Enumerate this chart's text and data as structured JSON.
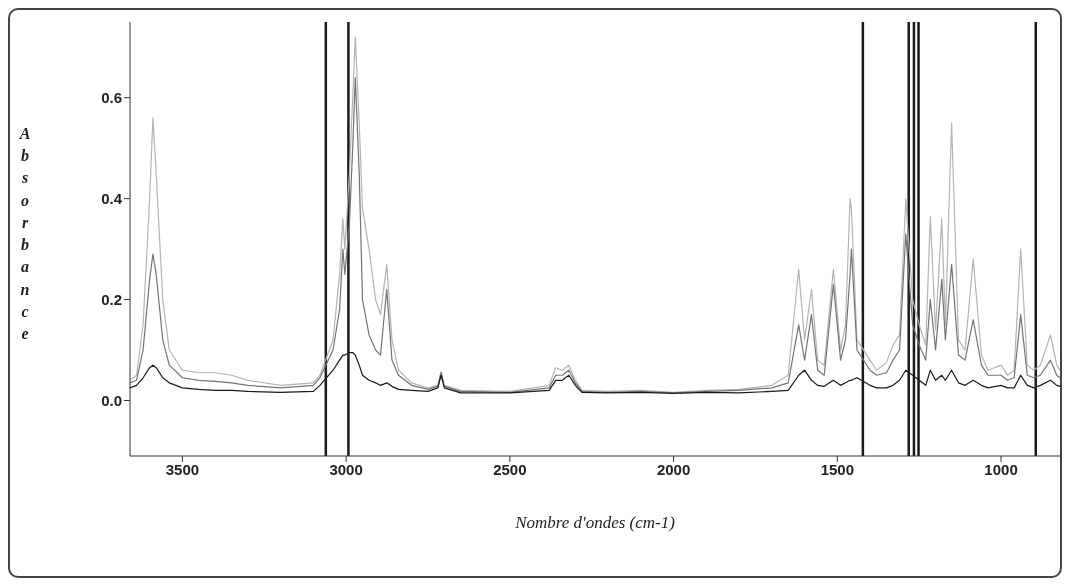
{
  "chart_data": {
    "type": "line",
    "xlabel": "Nombre d'ondes (cm-1)",
    "ylabel": "Absorbance",
    "x": [
      3660,
      3640,
      3620,
      3600,
      3590,
      3580,
      3560,
      3540,
      3500,
      3450,
      3400,
      3350,
      3300,
      3200,
      3100,
      3080,
      3040,
      3020,
      3010,
      3004,
      2990,
      2980,
      2972,
      2960,
      2950,
      2930,
      2910,
      2895,
      2876,
      2860,
      2840,
      2800,
      2750,
      2720,
      2710,
      2700,
      2650,
      2500,
      2380,
      2360,
      2340,
      2320,
      2300,
      2280,
      2200,
      2100,
      2000,
      1900,
      1800,
      1700,
      1650,
      1618,
      1600,
      1579,
      1560,
      1540,
      1512,
      1490,
      1475,
      1461,
      1457,
      1440,
      1400,
      1380,
      1350,
      1330,
      1310,
      1291,
      1270,
      1250,
      1230,
      1216,
      1200,
      1181,
      1170,
      1151,
      1130,
      1110,
      1085,
      1060,
      1040,
      1000,
      980,
      960,
      940,
      920,
      900,
      880,
      849,
      830,
      820
    ],
    "series": [
      {
        "color": "#b4b4b4",
        "values": [
          0.04,
          0.05,
          0.15,
          0.4,
          0.56,
          0.45,
          0.2,
          0.1,
          0.06,
          0.055,
          0.055,
          0.05,
          0.04,
          0.03,
          0.035,
          0.05,
          0.12,
          0.25,
          0.36,
          0.3,
          0.45,
          0.6,
          0.72,
          0.55,
          0.38,
          0.3,
          0.2,
          0.17,
          0.27,
          0.12,
          0.06,
          0.035,
          0.025,
          0.03,
          0.057,
          0.03,
          0.02,
          0.018,
          0.03,
          0.065,
          0.06,
          0.07,
          0.04,
          0.02,
          0.018,
          0.02,
          0.016,
          0.02,
          0.022,
          0.03,
          0.05,
          0.26,
          0.12,
          0.22,
          0.08,
          0.07,
          0.26,
          0.1,
          0.15,
          0.4,
          0.38,
          0.12,
          0.08,
          0.06,
          0.075,
          0.11,
          0.13,
          0.4,
          0.2,
          0.15,
          0.11,
          0.365,
          0.14,
          0.36,
          0.15,
          0.55,
          0.12,
          0.1,
          0.28,
          0.09,
          0.06,
          0.07,
          0.05,
          0.06,
          0.3,
          0.07,
          0.06,
          0.07,
          0.13,
          0.07,
          0.06
        ]
      },
      {
        "color": "#747474",
        "values": [
          0.035,
          0.04,
          0.1,
          0.24,
          0.29,
          0.25,
          0.12,
          0.07,
          0.045,
          0.04,
          0.038,
          0.035,
          0.03,
          0.025,
          0.03,
          0.045,
          0.1,
          0.18,
          0.3,
          0.25,
          0.35,
          0.5,
          0.64,
          0.45,
          0.2,
          0.13,
          0.1,
          0.09,
          0.22,
          0.08,
          0.05,
          0.03,
          0.022,
          0.028,
          0.055,
          0.028,
          0.018,
          0.016,
          0.025,
          0.05,
          0.05,
          0.06,
          0.035,
          0.018,
          0.016,
          0.018,
          0.015,
          0.018,
          0.02,
          0.025,
          0.035,
          0.15,
          0.08,
          0.17,
          0.06,
          0.05,
          0.23,
          0.08,
          0.12,
          0.25,
          0.3,
          0.1,
          0.06,
          0.05,
          0.055,
          0.08,
          0.1,
          0.33,
          0.15,
          0.11,
          0.08,
          0.2,
          0.1,
          0.24,
          0.12,
          0.27,
          0.09,
          0.08,
          0.16,
          0.07,
          0.05,
          0.05,
          0.04,
          0.045,
          0.17,
          0.05,
          0.045,
          0.05,
          0.08,
          0.05,
          0.045
        ]
      },
      {
        "color": "#1a1a1a",
        "values": [
          0.025,
          0.03,
          0.045,
          0.065,
          0.07,
          0.065,
          0.045,
          0.035,
          0.025,
          0.022,
          0.02,
          0.02,
          0.018,
          0.016,
          0.018,
          0.03,
          0.06,
          0.08,
          0.09,
          0.09,
          0.095,
          0.095,
          0.09,
          0.07,
          0.05,
          0.04,
          0.035,
          0.03,
          0.035,
          0.028,
          0.022,
          0.02,
          0.018,
          0.025,
          0.05,
          0.025,
          0.015,
          0.015,
          0.02,
          0.04,
          0.04,
          0.05,
          0.03,
          0.016,
          0.015,
          0.016,
          0.014,
          0.016,
          0.015,
          0.018,
          0.02,
          0.05,
          0.06,
          0.04,
          0.03,
          0.028,
          0.04,
          0.03,
          0.035,
          0.04,
          0.04,
          0.045,
          0.03,
          0.025,
          0.025,
          0.03,
          0.04,
          0.06,
          0.05,
          0.04,
          0.03,
          0.06,
          0.04,
          0.05,
          0.04,
          0.06,
          0.035,
          0.03,
          0.04,
          0.03,
          0.025,
          0.03,
          0.025,
          0.025,
          0.05,
          0.03,
          0.025,
          0.03,
          0.04,
          0.03,
          0.028
        ]
      }
    ],
    "xlim": [
      3660,
      820
    ],
    "xticks": [
      3500,
      3000,
      2500,
      2000,
      1500,
      1000
    ],
    "ylim": [
      -0.11,
      0.75
    ],
    "yticks": [
      {
        "value": 0,
        "label": "0.0"
      },
      {
        "value": 0.2,
        "label": "0.2"
      },
      {
        "value": 0.4,
        "label": "0.4"
      },
      {
        "value": 0.6,
        "label": "0.6"
      }
    ],
    "ref_lines": [
      {
        "axis": "x",
        "value": 3062,
        "color": "#1a1a1a"
      },
      {
        "axis": "x",
        "value": 2993,
        "color": "#1a1a1a"
      },
      {
        "axis": "x",
        "value": 1422,
        "color": "#1a1a1a"
      },
      {
        "axis": "x",
        "value": 1282,
        "color": "#1a1a1a"
      },
      {
        "axis": "x",
        "value": 1266,
        "color": "#1a1a1a"
      },
      {
        "axis": "x",
        "value": 1252,
        "color": "#1a1a1a"
      },
      {
        "axis": "x",
        "value": 894,
        "color": "#1a1a1a"
      }
    ],
    "grid": false,
    "legend": false,
    "marker": "none",
    "line_style": "solid"
  }
}
